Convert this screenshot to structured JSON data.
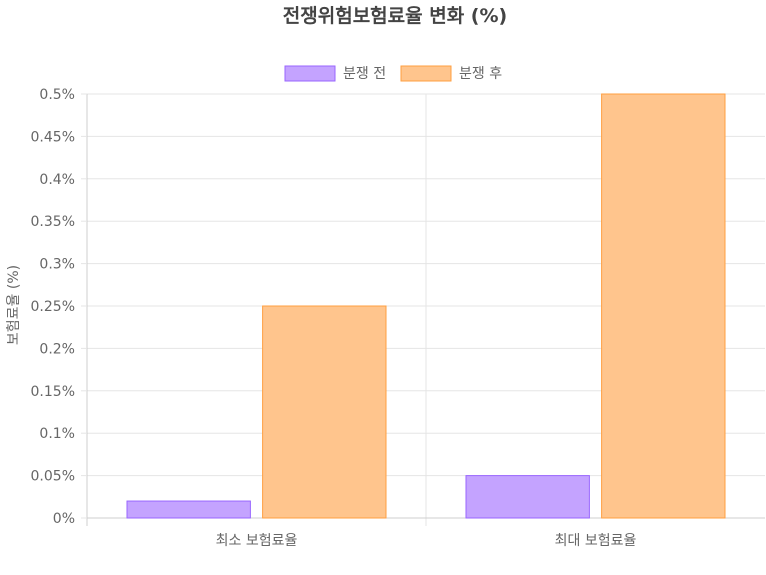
{
  "chart_data": {
    "type": "bar",
    "title": "전쟁위험보험료율 변화 (%)",
    "ylabel": "보험료율 (%)",
    "xlabel": "",
    "categories": [
      "최소 보험료율",
      "최대 보험료율"
    ],
    "series": [
      {
        "name": "분쟁 전",
        "values": [
          0.02,
          0.05
        ],
        "color": "#c4a3ff",
        "border": "#9966ff"
      },
      {
        "name": "분쟁 후",
        "values": [
          0.25,
          0.5
        ],
        "color": "#ffc58d",
        "border": "#ff9f40"
      }
    ],
    "ylim": [
      0,
      0.5
    ],
    "yticks": [
      "0%",
      "0.05%",
      "0.1%",
      "0.15%",
      "0.2%",
      "0.25%",
      "0.3%",
      "0.35%",
      "0.4%",
      "0.45%",
      "0.5%"
    ],
    "grid": true,
    "legend_position": "top"
  }
}
